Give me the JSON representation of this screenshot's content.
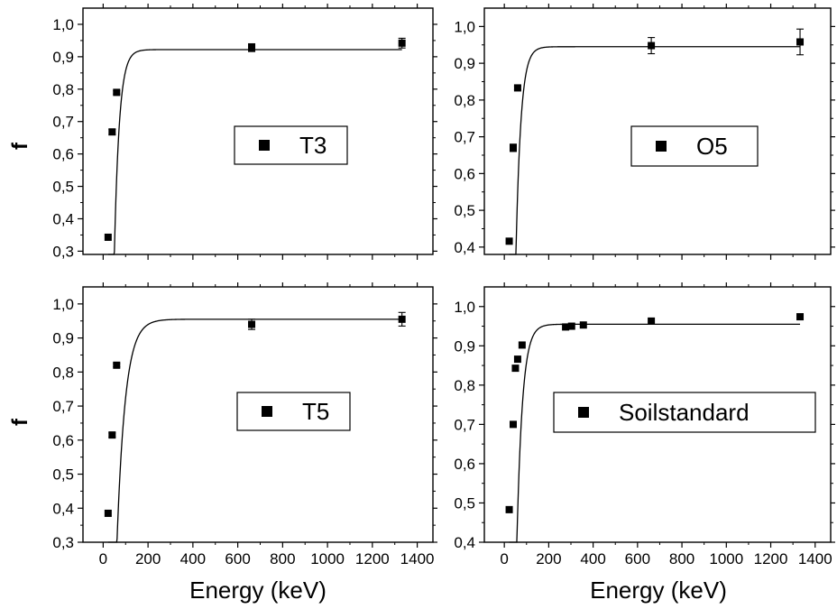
{
  "chart_data": [
    {
      "type": "scatter",
      "legend": "T3",
      "legend_position": "right-middle",
      "ylabel": "f",
      "xlabel": "",
      "xlim": [
        -90,
        1470
      ],
      "ylim": [
        0.29,
        1.05
      ],
      "xticks": [
        0,
        200,
        400,
        600,
        800,
        1000,
        1200,
        1400
      ],
      "xtick_labels": [
        "",
        "",
        "",
        "",
        "",
        "",
        "",
        ""
      ],
      "yticks": [
        0.3,
        0.4,
        0.5,
        0.6,
        0.7,
        0.8,
        0.9,
        1.0
      ],
      "ytick_labels": [
        "0,3",
        "0,4",
        "0,5",
        "0,6",
        "0,7",
        "0,8",
        "0,9",
        "1,0"
      ],
      "points": [
        {
          "x": 22,
          "y": 0.343,
          "err": 0
        },
        {
          "x": 40,
          "y": 0.668,
          "err": 0.008
        },
        {
          "x": 60,
          "y": 0.79,
          "err": 0.005
        },
        {
          "x": 662,
          "y": 0.928,
          "err": 0.012
        },
        {
          "x": 1332,
          "y": 0.942,
          "err": 0.015
        }
      ],
      "fit": {
        "asymptote": 0.922,
        "amplitude": 2.2,
        "rate": 0.045,
        "x0": 22
      },
      "grid": false
    },
    {
      "type": "scatter",
      "legend": "O5",
      "legend_position": "right-middle",
      "ylabel": "",
      "xlabel": "",
      "xlim": [
        -90,
        1470
      ],
      "ylim": [
        0.38,
        1.05
      ],
      "xticks": [
        0,
        200,
        400,
        600,
        800,
        1000,
        1200,
        1400
      ],
      "xtick_labels": [
        "",
        "",
        "",
        "",
        "",
        "",
        "",
        ""
      ],
      "yticks": [
        0.4,
        0.5,
        0.6,
        0.7,
        0.8,
        0.9,
        1.0
      ],
      "ytick_labels": [
        "0,4",
        "0,5",
        "0,6",
        "0,7",
        "0,8",
        "0,9",
        "1,0"
      ],
      "points": [
        {
          "x": 22,
          "y": 0.416,
          "err": 0
        },
        {
          "x": 40,
          "y": 0.67,
          "err": 0.01
        },
        {
          "x": 60,
          "y": 0.833,
          "err": 0.005
        },
        {
          "x": 662,
          "y": 0.948,
          "err": 0.022
        },
        {
          "x": 1332,
          "y": 0.958,
          "err": 0.035
        }
      ],
      "fit": {
        "asymptote": 0.945,
        "amplitude": 2.2,
        "rate": 0.045,
        "x0": 22
      },
      "grid": false
    },
    {
      "type": "scatter",
      "legend": "T5",
      "legend_position": "right-middle",
      "ylabel": "f",
      "xlabel": "Energy (keV)",
      "xlim": [
        -90,
        1470
      ],
      "ylim": [
        0.3,
        1.05
      ],
      "xticks": [
        0,
        200,
        400,
        600,
        800,
        1000,
        1200,
        1400
      ],
      "xtick_labels": [
        "0",
        "200",
        "400",
        "600",
        "800",
        "1000",
        "1200",
        "1400"
      ],
      "yticks": [
        0.3,
        0.4,
        0.5,
        0.6,
        0.7,
        0.8,
        0.9,
        1.0
      ],
      "ytick_labels": [
        "0,3",
        "0,4",
        "0,5",
        "0,6",
        "0,7",
        "0,8",
        "0,9",
        "1,0"
      ],
      "points": [
        {
          "x": 22,
          "y": 0.385,
          "err": 0
        },
        {
          "x": 40,
          "y": 0.615,
          "err": 0.006
        },
        {
          "x": 60,
          "y": 0.82,
          "err": 0.005
        },
        {
          "x": 662,
          "y": 0.94,
          "err": 0.015
        },
        {
          "x": 1332,
          "y": 0.955,
          "err": 0.02
        }
      ],
      "fit": {
        "asymptote": 0.955,
        "amplitude": 1.9,
        "rate": 0.027,
        "x0": 22
      },
      "grid": false
    },
    {
      "type": "scatter",
      "legend": "Soilstandard",
      "legend_position": "right-middle",
      "ylabel": "",
      "xlabel": "Energy (keV)",
      "xlim": [
        -90,
        1470
      ],
      "ylim": [
        0.4,
        1.05
      ],
      "xticks": [
        0,
        200,
        400,
        600,
        800,
        1000,
        1200,
        1400
      ],
      "xtick_labels": [
        "0",
        "200",
        "400",
        "600",
        "800",
        "1000",
        "1200",
        "1400"
      ],
      "yticks": [
        0.4,
        0.5,
        0.6,
        0.7,
        0.8,
        0.9,
        1.0
      ],
      "ytick_labels": [
        "0,4",
        "0,5",
        "0,6",
        "0,7",
        "0,8",
        "0,9",
        "1,0"
      ],
      "points": [
        {
          "x": 22,
          "y": 0.483,
          "err": 0
        },
        {
          "x": 40,
          "y": 0.7,
          "err": 0
        },
        {
          "x": 50,
          "y": 0.843,
          "err": 0
        },
        {
          "x": 60,
          "y": 0.866,
          "err": 0
        },
        {
          "x": 80,
          "y": 0.902,
          "err": 0
        },
        {
          "x": 276,
          "y": 0.948,
          "err": 0
        },
        {
          "x": 303,
          "y": 0.95,
          "err": 0
        },
        {
          "x": 356,
          "y": 0.953,
          "err": 0
        },
        {
          "x": 662,
          "y": 0.963,
          "err": 0
        },
        {
          "x": 1332,
          "y": 0.974,
          "err": 0
        }
      ],
      "fit": {
        "asymptote": 0.955,
        "amplitude": 2.2,
        "rate": 0.04,
        "x0": 22
      },
      "grid": false
    }
  ]
}
